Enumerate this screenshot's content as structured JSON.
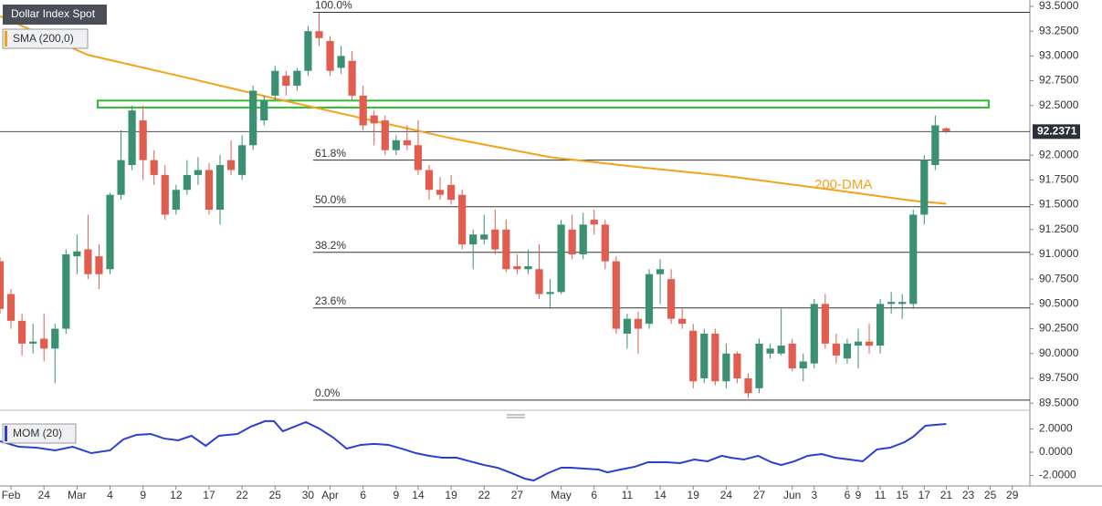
{
  "chart_data": {
    "type": "candlestick",
    "name": "Dollar Index Spot",
    "up_color": "#3a9070",
    "down_color": "#e05d50",
    "open": [
      90.93,
      90.6,
      90.33,
      90.1,
      90.15,
      90.05,
      90.25,
      90.98,
      91.05,
      90.98,
      90.85,
      91.6,
      91.9,
      92.35,
      91.95,
      91.8,
      91.45,
      91.65,
      91.8,
      91.85,
      91.45,
      91.95,
      91.8,
      92.1,
      92.35,
      92.6,
      92.8,
      92.7,
      92.85,
      93.25,
      93.15,
      92.88,
      92.95,
      92.6,
      92.4,
      92.35,
      92.05,
      92.15,
      92.1,
      91.85,
      91.65,
      91.7,
      91.6,
      91.1,
      91.15,
      91.25,
      91.25,
      90.88,
      90.85,
      90.85,
      90.6,
      90.62,
      91.25,
      91.0,
      91.35,
      91.3,
      90.93,
      90.2,
      90.35,
      90.3,
      90.8,
      90.75,
      90.35,
      90.23,
      89.75,
      90.2,
      89.72,
      90.0,
      89.75,
      89.65,
      90.0,
      90.0,
      90.1,
      89.85,
      89.9,
      90.5,
      90.1,
      89.95,
      90.08,
      90.12,
      90.08,
      90.5,
      90.5,
      90.5,
      91.4,
      91.9,
      92.27
    ],
    "high": [
      90.97,
      90.65,
      90.4,
      90.3,
      90.4,
      90.3,
      91.05,
      91.2,
      91.4,
      91.1,
      91.62,
      92.25,
      92.5,
      92.5,
      92.05,
      91.9,
      91.7,
      91.95,
      91.98,
      91.92,
      92.0,
      92.15,
      92.2,
      92.7,
      92.6,
      92.9,
      92.85,
      92.88,
      93.3,
      93.44,
      93.2,
      93.1,
      93.05,
      92.7,
      92.45,
      92.4,
      92.2,
      92.3,
      92.35,
      91.9,
      91.78,
      91.8,
      91.65,
      91.25,
      91.4,
      91.45,
      91.35,
      91.0,
      91.05,
      91.1,
      90.75,
      91.35,
      91.4,
      91.42,
      91.45,
      91.35,
      90.98,
      90.4,
      90.42,
      90.85,
      90.95,
      90.85,
      90.45,
      90.3,
      90.25,
      90.25,
      90.1,
      90.02,
      89.8,
      90.15,
      90.1,
      90.45,
      90.15,
      90.0,
      90.55,
      90.6,
      90.2,
      90.15,
      90.25,
      90.3,
      90.55,
      90.62,
      90.6,
      91.45,
      92.0,
      92.4,
      92.28
    ],
    "low": [
      90.4,
      90.25,
      89.98,
      90.0,
      89.92,
      89.7,
      90.2,
      90.8,
      90.75,
      90.65,
      90.8,
      91.55,
      91.85,
      91.75,
      91.7,
      91.35,
      91.4,
      91.6,
      91.7,
      91.4,
      91.3,
      91.8,
      91.75,
      92.05,
      92.3,
      92.55,
      92.6,
      92.65,
      92.8,
      93.1,
      92.8,
      92.82,
      92.55,
      92.25,
      92.1,
      92.0,
      92.0,
      92.05,
      91.8,
      91.55,
      91.55,
      91.5,
      91.05,
      90.85,
      91.1,
      91.0,
      90.82,
      90.8,
      90.8,
      90.55,
      90.45,
      90.6,
      90.95,
      90.95,
      91.2,
      90.85,
      90.2,
      90.05,
      90.0,
      90.25,
      90.5,
      90.3,
      90.25,
      89.65,
      89.7,
      89.68,
      89.65,
      89.7,
      89.55,
      89.6,
      89.95,
      89.98,
      89.82,
      89.72,
      89.85,
      90.05,
      89.9,
      89.9,
      89.85,
      90.0,
      90.0,
      90.4,
      90.35,
      90.45,
      91.3,
      91.85,
      92.22
    ],
    "close": [
      90.45,
      90.33,
      90.1,
      90.12,
      90.05,
      90.25,
      91.0,
      91.03,
      90.8,
      90.8,
      91.6,
      91.95,
      92.45,
      91.95,
      91.8,
      91.4,
      91.65,
      91.8,
      91.85,
      91.45,
      91.9,
      91.85,
      92.1,
      92.65,
      92.55,
      92.85,
      92.7,
      92.85,
      93.25,
      93.18,
      92.85,
      93.0,
      92.6,
      92.3,
      92.32,
      92.05,
      92.15,
      92.1,
      91.85,
      91.65,
      91.6,
      91.55,
      91.1,
      91.2,
      91.2,
      91.05,
      90.85,
      90.85,
      90.88,
      90.6,
      90.62,
      91.3,
      91.0,
      91.3,
      91.3,
      90.93,
      90.25,
      90.35,
      90.25,
      90.8,
      90.85,
      90.35,
      90.3,
      89.72,
      90.2,
      89.72,
      90.0,
      89.75,
      89.6,
      90.1,
      90.05,
      90.08,
      89.85,
      89.92,
      90.5,
      90.1,
      89.98,
      90.1,
      90.12,
      90.08,
      90.5,
      90.52,
      90.52,
      91.4,
      91.95,
      92.3,
      92.24
    ],
    "xlim": [
      0,
      93.6
    ],
    "xticks": [
      {
        "value": 1,
        "label": "Feb"
      },
      {
        "value": 4,
        "label": "24"
      },
      {
        "value": 7,
        "label": "Mar"
      },
      {
        "value": 10,
        "label": "4"
      },
      {
        "value": 13,
        "label": "9"
      },
      {
        "value": 16,
        "label": "12"
      },
      {
        "value": 19,
        "label": "17"
      },
      {
        "value": 22,
        "label": "22"
      },
      {
        "value": 25,
        "label": "25"
      },
      {
        "value": 28,
        "label": "30"
      },
      {
        "value": 30,
        "label": "Apr"
      },
      {
        "value": 33,
        "label": "6"
      },
      {
        "value": 36,
        "label": "9"
      },
      {
        "value": 38,
        "label": "14"
      },
      {
        "value": 41,
        "label": "19"
      },
      {
        "value": 44,
        "label": "22"
      },
      {
        "value": 47,
        "label": "27"
      },
      {
        "value": 51,
        "label": "May"
      },
      {
        "value": 54,
        "label": "6"
      },
      {
        "value": 57,
        "label": "11"
      },
      {
        "value": 60,
        "label": "14"
      },
      {
        "value": 63,
        "label": "19"
      },
      {
        "value": 66,
        "label": "24"
      },
      {
        "value": 69,
        "label": "27"
      },
      {
        "value": 72,
        "label": "Jun"
      },
      {
        "value": 74,
        "label": "3"
      },
      {
        "value": 77,
        "label": "6"
      },
      {
        "value": 78,
        "label": "9"
      },
      {
        "value": 80,
        "label": "11"
      },
      {
        "value": 82,
        "label": "15"
      },
      {
        "value": 84,
        "label": "17"
      },
      {
        "value": 86,
        "label": "21"
      },
      {
        "value": 88,
        "label": "23"
      },
      {
        "value": 90,
        "label": "25"
      },
      {
        "value": 92,
        "label": "29"
      }
    ],
    "ylim": [
      89.428,
      93.564
    ],
    "yticks": [
      {
        "value": 93.5,
        "label": "93.5000"
      },
      {
        "value": 93.25,
        "label": "93.2500"
      },
      {
        "value": 93.0,
        "label": "93.0000"
      },
      {
        "value": 92.75,
        "label": "92.7500"
      },
      {
        "value": 92.5,
        "label": "92.5000"
      },
      {
        "value": 92.0,
        "label": "92.0000"
      },
      {
        "value": 91.75,
        "label": "91.7500"
      },
      {
        "value": 91.5,
        "label": "91.5000"
      },
      {
        "value": 91.25,
        "label": "91.2500"
      },
      {
        "value": 91.0,
        "label": "91.0000"
      },
      {
        "value": 90.75,
        "label": "90.7500"
      },
      {
        "value": 90.5,
        "label": "90.5000"
      },
      {
        "value": 90.25,
        "label": "90.2500"
      },
      {
        "value": 90.0,
        "label": "90.0000"
      },
      {
        "value": 89.75,
        "label": "89.7500"
      },
      {
        "value": 89.5,
        "label": "89.5000"
      }
    ],
    "last_price": 92.2371,
    "sma": {
      "name": "SMA (200,0)",
      "color": "#f5a21b",
      "x": [
        0,
        8,
        17,
        25,
        33,
        41,
        50,
        58,
        66,
        75,
        83,
        86
      ],
      "values": [
        93.4,
        93.01,
        92.78,
        92.57,
        92.37,
        92.17,
        91.98,
        91.88,
        91.79,
        91.66,
        91.54,
        91.51
      ]
    },
    "annotation": "200-DMA",
    "zone": [
      92.48,
      92.55
    ],
    "fib_levels": [
      {
        "label": "100.0%",
        "value": 93.44
      },
      {
        "label": "61.8%",
        "value": 91.95
      },
      {
        "label": "50.0%",
        "value": 91.48
      },
      {
        "label": "38.2%",
        "value": 91.02
      },
      {
        "label": "23.6%",
        "value": 90.46
      },
      {
        "label": "0.0%",
        "value": 89.53
      }
    ],
    "mom": {
      "name": "MOM (20)",
      "color": "#2a3fd1",
      "ylim": [
        -2.82,
        2.82
      ],
      "yticks": [
        {
          "value": 2,
          "label": "2.0000"
        },
        {
          "value": 0,
          "label": "0.0000"
        },
        {
          "value": -2,
          "label": "-2.0000"
        }
      ],
      "x": [
        0,
        1.7,
        3.3,
        5,
        6.6,
        8.3,
        10,
        11.2,
        12.4,
        13.7,
        14.9,
        16.2,
        17.4,
        18.7,
        19.9,
        21.6,
        22.8,
        24.1,
        24.9,
        25.7,
        27.8,
        29,
        30.3,
        31.5,
        32.8,
        34,
        35.3,
        36.5,
        37.8,
        39,
        40.2,
        41.5,
        42.7,
        44,
        45.2,
        46.5,
        47.7,
        48.5,
        49.8,
        51,
        51.9,
        53.1,
        54.4,
        55.2,
        56.4,
        57.7,
        58.9,
        60.6,
        61.8,
        63.1,
        64.3,
        65.6,
        66.4,
        67.6,
        68.9,
        70.1,
        71,
        72.2,
        73.4,
        74.7,
        75.9,
        77.2,
        78.4,
        79.7,
        80.9,
        82.2,
        83,
        84.1,
        86
      ],
      "values": [
        0.94,
        0.47,
        0.39,
        0.16,
        0.47,
        -0.08,
        0.16,
        1.1,
        1.49,
        1.57,
        1.18,
        1.02,
        1.41,
        0.55,
        1.41,
        1.57,
        2.2,
        2.67,
        2.67,
        1.8,
        2.59,
        2.04,
        1.25,
        0.31,
        0.63,
        0.71,
        0.63,
        0.31,
        -0.08,
        -0.31,
        -0.47,
        -0.47,
        -0.78,
        -1.1,
        -1.33,
        -1.8,
        -2.27,
        -2.43,
        -1.8,
        -1.33,
        -1.33,
        -1.41,
        -1.49,
        -1.73,
        -1.49,
        -1.25,
        -0.86,
        -0.86,
        -0.94,
        -0.63,
        -0.78,
        -0.31,
        -0.47,
        -0.63,
        -0.31,
        -0.86,
        -1.1,
        -0.78,
        -0.31,
        -0.16,
        -0.47,
        -0.63,
        -0.78,
        0.24,
        0.39,
        0.86,
        1.33,
        2.27,
        2.43
      ]
    }
  }
}
